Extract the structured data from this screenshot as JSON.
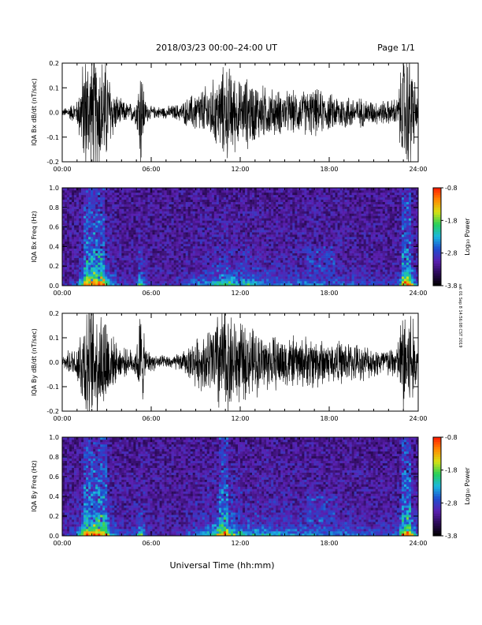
{
  "header": {
    "title": "2018/03/23   00:00–24:00 UT",
    "page": "Page 1/1"
  },
  "side_note": "sat 01 Sep 8 14:56:08 CST 2019",
  "colors": {
    "waveform": "#000000",
    "colormap": [
      "#000000",
      "#2a0a55",
      "#5a1fb0",
      "#1f4ed0",
      "#1bb7e0",
      "#26d05a",
      "#d6e214",
      "#ff8a00",
      "#ff1a00"
    ]
  },
  "chart_data": [
    {
      "type": "line",
      "name": "bx-waveform",
      "ylabel": "IQA Bx dB/dt (nT/sec)",
      "xlabel": "",
      "xticks": [
        "00:00",
        "06:00",
        "12:00",
        "18:00",
        "24:00"
      ],
      "xlim": [
        0,
        24
      ],
      "ylim": [
        -0.2,
        0.2
      ],
      "yticks": [
        "-0.2",
        "-0.1",
        "0.0",
        "0.1",
        "0.2"
      ],
      "ytick_values": [
        -0.2,
        -0.1,
        0.0,
        0.1,
        0.2
      ],
      "envelope": {
        "x": [
          0,
          1,
          1.5,
          2,
          2.5,
          3,
          3.5,
          4,
          4.5,
          5,
          5.3,
          5.6,
          6,
          7,
          8,
          8.5,
          9,
          9.5,
          10,
          10.5,
          11,
          11.5,
          12,
          12.5,
          13,
          13.5,
          14,
          15,
          16,
          17,
          18,
          19,
          20,
          21,
          22,
          22.6,
          23,
          23.5,
          24
        ],
        "amplitude": [
          0.01,
          0.04,
          0.2,
          0.2,
          0.2,
          0.17,
          0.07,
          0.04,
          0.03,
          0.04,
          0.2,
          0.04,
          0.02,
          0.02,
          0.03,
          0.05,
          0.07,
          0.08,
          0.1,
          0.12,
          0.16,
          0.14,
          0.1,
          0.12,
          0.1,
          0.09,
          0.08,
          0.07,
          0.07,
          0.08,
          0.06,
          0.06,
          0.05,
          0.04,
          0.04,
          0.05,
          0.2,
          0.2,
          0.03
        ]
      }
    },
    {
      "type": "heatmap",
      "name": "bx-spectrogram",
      "ylabel": "IQA Bx Freq (Hz)",
      "xticks": [
        "00:00",
        "06:00",
        "12:00",
        "18:00",
        "24:00"
      ],
      "xlim": [
        0,
        24
      ],
      "ylim": [
        0.0,
        1.0
      ],
      "yticks": [
        "0.0",
        "0.2",
        "0.4",
        "0.6",
        "0.8",
        "1.0"
      ],
      "ytick_values": [
        0.0,
        0.2,
        0.4,
        0.6,
        0.8,
        1.0
      ],
      "colorbar": {
        "label": "Log₁₀ Power",
        "ticks": [
          "-0.8",
          "-1.8",
          "-2.8",
          "-3.8"
        ],
        "range": [
          -3.8,
          -0.8
        ]
      }
    },
    {
      "type": "line",
      "name": "by-waveform",
      "ylabel": "IQA By dB/dt (nT/sec)",
      "xlabel": "",
      "xticks": [
        "00:00",
        "06:00",
        "12:00",
        "18:00",
        "24:00"
      ],
      "xlim": [
        0,
        24
      ],
      "ylim": [
        -0.2,
        0.2
      ],
      "yticks": [
        "-0.2",
        "-0.1",
        "0.0",
        "0.1",
        "0.2"
      ],
      "ytick_values": [
        -0.2,
        -0.1,
        0.0,
        0.1,
        0.2
      ],
      "envelope": {
        "x": [
          0,
          1,
          1.5,
          2,
          2.5,
          3,
          3.5,
          4,
          4.5,
          5,
          5.3,
          5.6,
          6,
          7,
          8,
          8.5,
          9,
          9.5,
          10,
          10.5,
          11,
          11.5,
          12,
          12.5,
          13,
          13.5,
          14,
          15,
          16,
          17,
          18,
          19,
          20,
          21,
          22,
          22.6,
          23,
          23.5,
          24
        ],
        "amplitude": [
          0.02,
          0.06,
          0.2,
          0.2,
          0.2,
          0.18,
          0.07,
          0.05,
          0.04,
          0.05,
          0.2,
          0.05,
          0.03,
          0.02,
          0.03,
          0.05,
          0.08,
          0.09,
          0.12,
          0.18,
          0.2,
          0.16,
          0.13,
          0.12,
          0.11,
          0.1,
          0.09,
          0.09,
          0.08,
          0.09,
          0.07,
          0.07,
          0.06,
          0.05,
          0.05,
          0.06,
          0.2,
          0.2,
          0.03
        ]
      }
    },
    {
      "type": "heatmap",
      "name": "by-spectrogram",
      "ylabel": "IQA By Freq (Hz)",
      "xlabel": "Universal Time (hh:mm)",
      "xticks": [
        "00:00",
        "06:00",
        "12:00",
        "18:00",
        "24:00"
      ],
      "xlim": [
        0,
        24
      ],
      "ylim": [
        0.0,
        1.0
      ],
      "yticks": [
        "0.0",
        "0.2",
        "0.4",
        "0.6",
        "0.8",
        "1.0"
      ],
      "ytick_values": [
        0.0,
        0.2,
        0.4,
        0.6,
        0.8,
        1.0
      ],
      "colorbar": {
        "label": "Log₁₀ Power",
        "ticks": [
          "-0.8",
          "-1.8",
          "-2.8",
          "-3.8"
        ],
        "range": [
          -3.8,
          -0.8
        ]
      }
    }
  ]
}
